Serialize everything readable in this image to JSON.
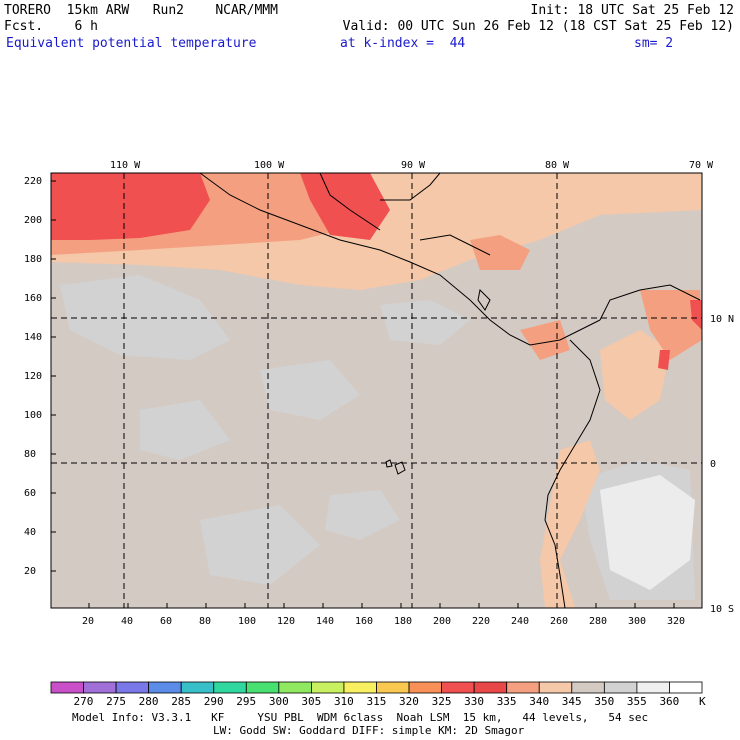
{
  "header": {
    "model": "TORERO  15km ARW   Run2    NCAR/MMM",
    "init": "Init: 18 UTC Sat 25 Feb 12",
    "fcst": "Fcst.    6 h",
    "valid": "Valid: 00 UTC Sun 26 Feb 12 (18 CST Sat 25 Feb 12)",
    "field": "Equivalent potential temperature",
    "level": "at k-index =  44",
    "smooth": "sm= 2"
  },
  "axes": {
    "top_lon": [
      "110 W",
      "100 W",
      "90 W",
      "80 W",
      "70 W"
    ],
    "left_y": [
      "220",
      "200",
      "180",
      "160",
      "140",
      "120",
      "100",
      "80",
      "60",
      "40",
      "20"
    ],
    "bottom_x": [
      "20",
      "40",
      "60",
      "80",
      "100",
      "120",
      "140",
      "160",
      "180",
      "200",
      "220",
      "240",
      "260",
      "280",
      "300",
      "320"
    ],
    "right_lat": [
      "10 N",
      "0",
      "10 S"
    ]
  },
  "colorbar": {
    "labels": [
      "270",
      "275",
      "280",
      "285",
      "290",
      "295",
      "300",
      "305",
      "310",
      "315",
      "320",
      "325",
      "330",
      "335",
      "340",
      "345",
      "350",
      "355",
      "360"
    ],
    "unit": "K",
    "colors": [
      "#c84fc8",
      "#a070d8",
      "#7a78e8",
      "#5a8ce8",
      "#38c0c8",
      "#30d8a0",
      "#48e070",
      "#90e860",
      "#c8f060",
      "#f8f060",
      "#f8c850",
      "#f89058",
      "#f05050",
      "#e84848",
      "#f4a080",
      "#f4c8a8",
      "#d4cac4",
      "#d2d2d2",
      "#f0f0f0",
      "#ffffff"
    ]
  },
  "footer": {
    "line1": "Model Info: V3.3.1   KF     YSU PBL  WDM 6class  Noah LSM  15 km,   44 levels,   54 sec",
    "line2": "LW: Godd SW: Goddard DIFF: simple KM: 2D Smagor"
  }
}
